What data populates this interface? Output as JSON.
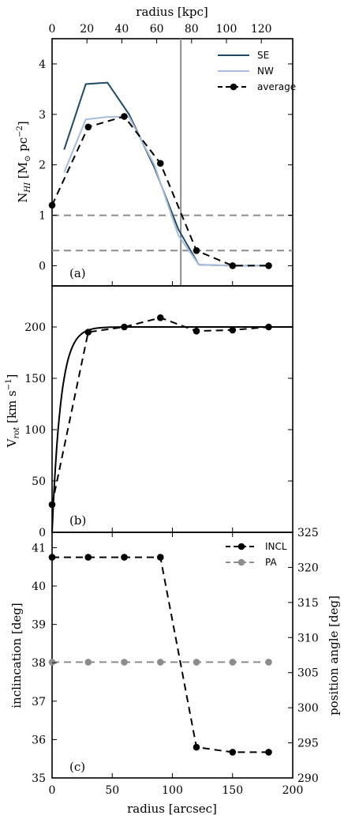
{
  "chart_data": [
    {
      "panel": "a",
      "type": "line",
      "panel_label": "(a)",
      "ylabel_main": "N",
      "ylabel_sub": "HI",
      "ylabel_unit": "[M",
      "ylabel_sun": "⊙",
      "ylabel_tail": "pc",
      "ylabel_exp": "−2",
      "ylabel_close": "]",
      "top_xlabel": "radius [kpc]",
      "top_xticks": [
        "0",
        "20",
        "40",
        "60",
        "80",
        "100",
        "120"
      ],
      "top_xtick_values": [
        0,
        20,
        40,
        60,
        80,
        100,
        120
      ],
      "x_kpc_per_arcsec": 0.69,
      "xlim": [
        0,
        200
      ],
      "ylim": [
        -0.4,
        4.5
      ],
      "yticks": [
        0,
        1,
        2,
        3,
        4
      ],
      "vline_x": 107,
      "hlines": [
        1.0,
        0.3
      ],
      "series": [
        {
          "name": "SE",
          "style": "solid",
          "color": "#1f4a66",
          "x": [
            10,
            28,
            46,
            64,
            85,
            105,
            122,
            150,
            180
          ],
          "y": [
            2.3,
            3.6,
            3.63,
            3.0,
            1.95,
            0.72,
            0.02,
            0.0,
            0.0
          ]
        },
        {
          "name": "NW",
          "style": "solid",
          "color": "#a6bedb",
          "x": [
            10,
            28,
            46,
            64,
            85,
            105,
            122,
            150,
            180
          ],
          "y": [
            1.85,
            2.9,
            2.95,
            2.95,
            2.0,
            0.6,
            0.02,
            0.0,
            0.0
          ]
        },
        {
          "name": "average",
          "style": "dashed-markers",
          "color": "#000000",
          "x": [
            0,
            30,
            60,
            90,
            120,
            150,
            180
          ],
          "y": [
            1.2,
            2.75,
            2.96,
            2.03,
            0.3,
            0.0,
            0.0
          ]
        }
      ],
      "legend": [
        {
          "label": "SE",
          "style": "solid",
          "color": "#1f4a66"
        },
        {
          "label": "NW",
          "style": "solid",
          "color": "#a6bedb"
        },
        {
          "label": "average",
          "style": "dashed-markers",
          "color": "#000000"
        }
      ]
    },
    {
      "panel": "b",
      "type": "line",
      "panel_label": "(b)",
      "ylabel_main": "V",
      "ylabel_sub": "rot",
      "ylabel_unit": "[km s",
      "ylabel_exp": "−1",
      "ylabel_close": "]",
      "xlim": [
        0,
        200
      ],
      "ylim": [
        0,
        240
      ],
      "yticks": [
        0,
        50,
        100,
        150,
        200
      ],
      "model_curve": {
        "vmax": 200,
        "scale_arcsec": 6.5,
        "style": "solid",
        "color": "#000000"
      },
      "series": [
        {
          "name": "",
          "style": "dashed-markers",
          "color": "#000000",
          "x": [
            0,
            30,
            60,
            90,
            120,
            150,
            180
          ],
          "y": [
            27,
            195,
            200,
            209,
            196,
            197,
            200
          ]
        }
      ]
    },
    {
      "panel": "c",
      "type": "line",
      "panel_label": "(c)",
      "ylabel_left": "inclincation [deg]",
      "ylabel_right": "position angle [deg]",
      "xlabel": "radius [arcsec]",
      "xticks": [
        "0",
        "50",
        "100",
        "150",
        "200"
      ],
      "xtick_values": [
        0,
        50,
        100,
        150,
        200
      ],
      "xlim": [
        0,
        200
      ],
      "ylim_left": [
        35,
        41.4
      ],
      "yticks_left": [
        35,
        36,
        37,
        38,
        39,
        40,
        41
      ],
      "ylim_right": [
        290,
        325
      ],
      "yticks_right": [
        290,
        295,
        300,
        305,
        310,
        315,
        320,
        325
      ],
      "series": [
        {
          "name": "INCL",
          "axis": "left",
          "style": "dashed-markers",
          "color": "#000000",
          "x": [
            0,
            30,
            60,
            90,
            120,
            150,
            180
          ],
          "y": [
            40.75,
            40.75,
            40.75,
            40.75,
            35.8,
            35.67,
            35.67
          ]
        },
        {
          "name": "PA",
          "axis": "right",
          "style": "dashed-markers",
          "color": "#8c8c8c",
          "x": [
            0,
            30,
            60,
            90,
            120,
            150,
            180
          ],
          "y": [
            306.5,
            306.5,
            306.5,
            306.5,
            306.5,
            306.5,
            306.5
          ]
        }
      ],
      "legend": [
        {
          "label": "INCL",
          "style": "dashed-markers",
          "color": "#000000"
        },
        {
          "label": "PA",
          "style": "dashed-markers",
          "color": "#8c8c8c"
        }
      ]
    }
  ]
}
